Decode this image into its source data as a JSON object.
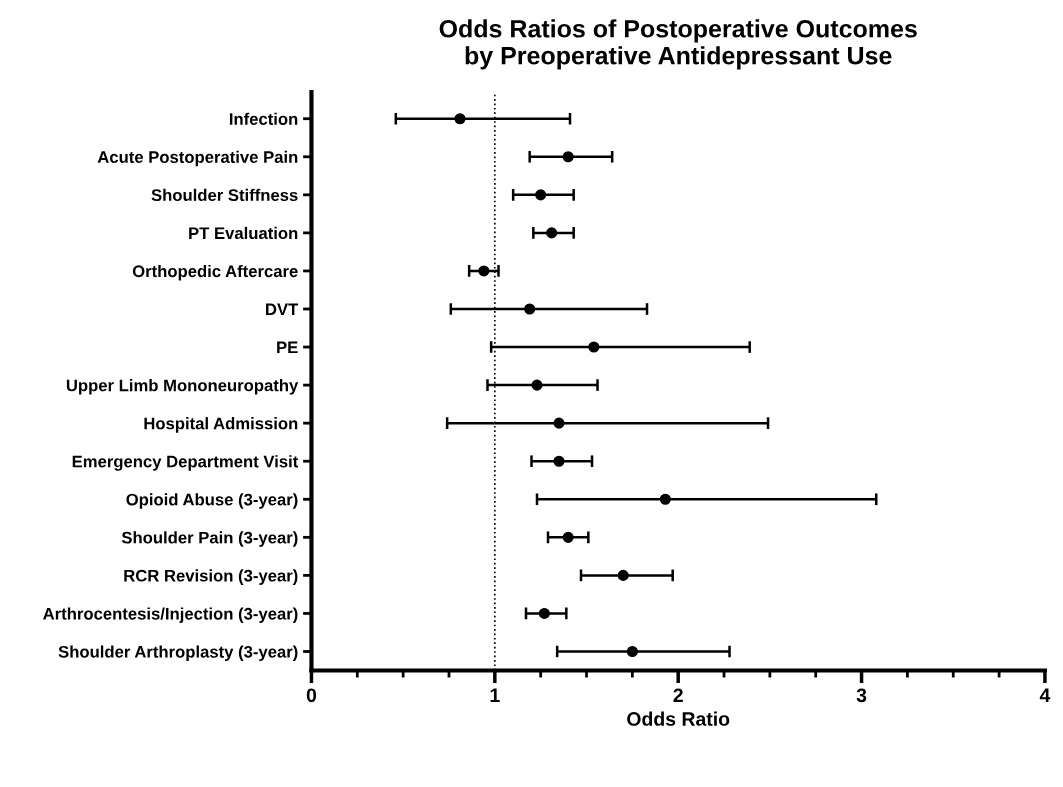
{
  "chart_data": {
    "type": "scatter",
    "orientation": "horizontal",
    "title": "Odds Ratios of Postoperative Outcomes\nby Preoperative Antidepressant Use",
    "xlabel": "Odds Ratio",
    "categories": [
      "Infection",
      "Acute Postoperative Pain",
      "Shoulder Stiffness",
      "PT Evaluation",
      "Orthopedic Aftercare",
      "DVT",
      "PE",
      "Upper Limb Mononeuropathy",
      "Hospital Admission",
      "Emergency Department Visit",
      "Opioid Abuse (3-year)",
      "Shoulder Pain (3-year)",
      "RCR Revision (3-year)",
      "Arthrocentesis/Injection (3-year)",
      "Shoulder Arthroplasty (3-year)"
    ],
    "values": [
      0.81,
      1.4,
      1.25,
      1.31,
      0.94,
      1.19,
      1.54,
      1.23,
      1.35,
      1.35,
      1.93,
      1.4,
      1.7,
      1.27,
      1.75
    ],
    "errors": [
      [
        0.46,
        1.41
      ],
      [
        1.19,
        1.64
      ],
      [
        1.1,
        1.43
      ],
      [
        1.21,
        1.43
      ],
      [
        0.86,
        1.02
      ],
      [
        0.76,
        1.83
      ],
      [
        0.98,
        2.39
      ],
      [
        0.96,
        1.56
      ],
      [
        0.74,
        2.49
      ],
      [
        1.2,
        1.53
      ],
      [
        1.23,
        3.08
      ],
      [
        1.29,
        1.51
      ],
      [
        1.47,
        1.97
      ],
      [
        1.17,
        1.39
      ],
      [
        1.34,
        2.28
      ]
    ],
    "color": "#000000",
    "marker": "circle",
    "xlim": [
      0,
      4
    ],
    "xticks": [
      0,
      {
        "value": 0.25,
        "label": null
      },
      {
        "value": 0.5,
        "label": null
      },
      {
        "value": 0.75,
        "label": null
      },
      1,
      {
        "value": 1.25,
        "label": null
      },
      {
        "value": 1.5,
        "label": null
      },
      {
        "value": 1.75,
        "label": null
      },
      2,
      {
        "value": 2.25,
        "label": null
      },
      {
        "value": 2.5,
        "label": null
      },
      {
        "value": 2.75,
        "label": null
      },
      3,
      {
        "value": 3.25,
        "label": null
      },
      {
        "value": 3.5,
        "label": null
      },
      {
        "value": 3.75,
        "label": null
      },
      4
    ],
    "ref_lines": [
      {
        "axis": "x",
        "value": 1,
        "line_style": "dotted",
        "color": "#000000"
      }
    ],
    "grid": false,
    "legend": false
  }
}
